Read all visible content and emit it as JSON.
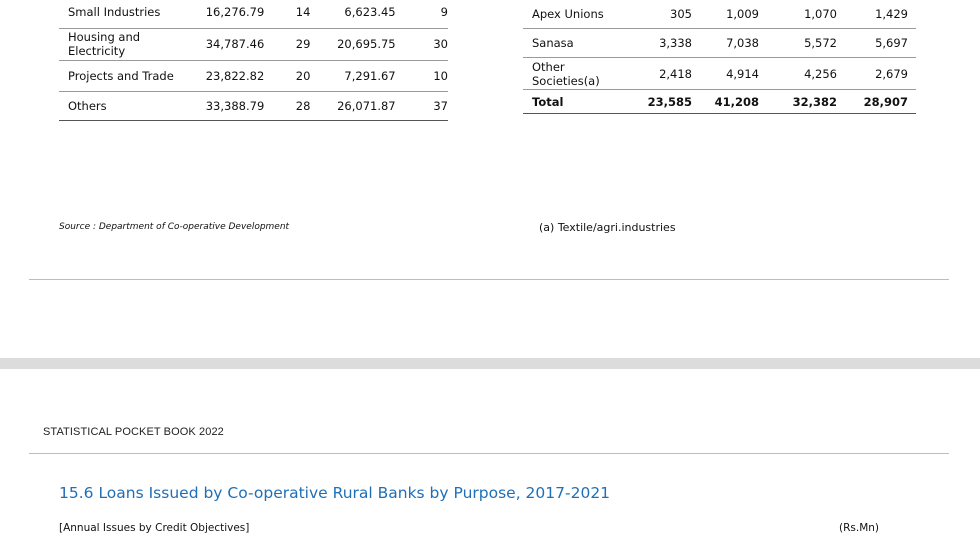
{
  "left_table": {
    "rows": [
      {
        "label": "Small Industries",
        "v1": "16,276.79",
        "v2": "14",
        "v3": "6,623.45",
        "v4": "9"
      },
      {
        "label": "Housing and Electricity",
        "v1": "34,787.46",
        "v2": "29",
        "v3": "20,695.75",
        "v4": "30"
      },
      {
        "label": "Projects and Trade",
        "v1": "23,822.82",
        "v2": "20",
        "v3": "7,291.67",
        "v4": "10"
      },
      {
        "label": "Others",
        "v1": "33,388.79",
        "v2": "28",
        "v3": "26,071.87",
        "v4": "37"
      }
    ]
  },
  "right_table": {
    "rows": [
      {
        "label": "Apex  Unions",
        "v1": "305",
        "v2": "1,009",
        "v3": "1,070",
        "v4": "1,429"
      },
      {
        "label": "Sanasa",
        "v1": "3,338",
        "v2": "7,038",
        "v3": "5,572",
        "v4": "5,697"
      },
      {
        "label": "Other Societies(a)",
        "v1": "2,418",
        "v2": "4,914",
        "v3": "4,256",
        "v4": "2,679"
      },
      {
        "label": "Total",
        "v1": "23,585",
        "v2": "41,208",
        "v3": "32,382",
        "v4": "28,907"
      }
    ]
  },
  "source_note": "Source : Department of Co-operative Development",
  "footnote": "(a) Textile/agri.industries",
  "page_header": "STATISTICAL POCKET BOOK 2022",
  "section_title": "15.6 Loans Issued by Co-operative Rural Banks by Purpose, 2017-2021",
  "section_subtitle": "[Annual Issues by Credit Objectives]",
  "unit_label": "(Rs.Mn)"
}
